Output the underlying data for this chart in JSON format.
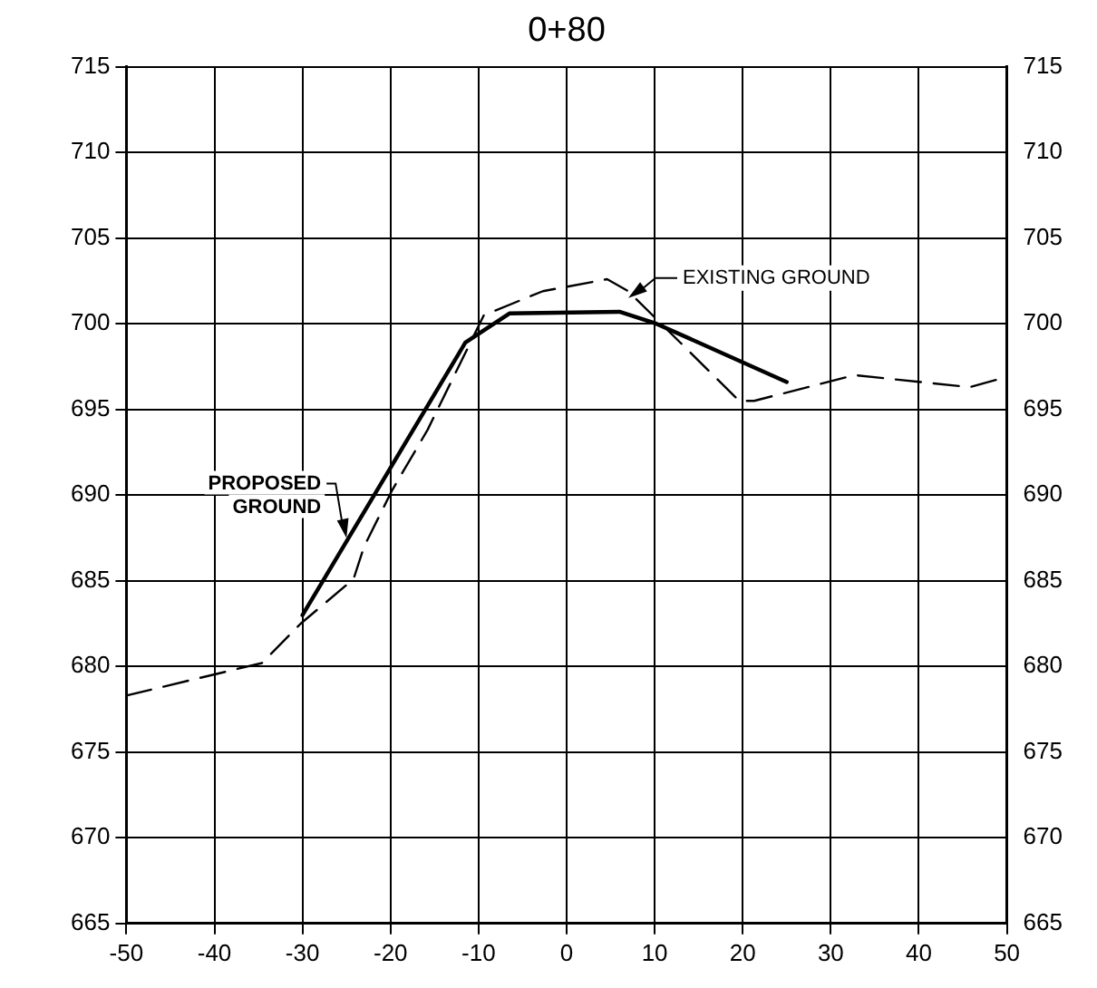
{
  "chart_data": {
    "type": "line",
    "title": "0+80",
    "series": [
      {
        "color": "#000000",
        "line_style": "solid",
        "x": [
          -30,
          -11.5,
          -6.5,
          6,
          10.2,
          25
        ],
        "values": [
          683,
          698.9,
          700.6,
          700.7,
          700,
          696.6
        ]
      },
      {
        "color": "#000000",
        "line_style": "dashed",
        "x": [
          -50,
          -34.6,
          -30.2,
          -24.2,
          -23,
          -19.8,
          -15.8,
          -9.4,
          -2.7,
          4.6,
          7,
          19.6,
          21.3,
          32.7,
          45.8,
          50
        ],
        "values": [
          678.3,
          680.2,
          682.5,
          685.1,
          687,
          690.3,
          693.8,
          700.5,
          701.9,
          702.6,
          701.9,
          695.5,
          695.5,
          697,
          696.3,
          696.9
        ]
      }
    ],
    "xlim": [
      -50,
      50
    ],
    "xticks": [
      -50,
      -40,
      -30,
      -20,
      -10,
      0,
      10,
      20,
      30,
      40,
      50
    ],
    "ylim": [
      665,
      715
    ],
    "yticks": [
      665,
      670,
      675,
      680,
      685,
      690,
      695,
      700,
      705,
      710,
      715
    ],
    "y2lim": [
      665,
      715
    ],
    "y2ticks": [
      665,
      670,
      675,
      680,
      685,
      690,
      695,
      700,
      705,
      710,
      715
    ],
    "annotations": [
      {
        "text": "PROPOSED GROUND",
        "x": -25,
        "y": 687.5
      },
      {
        "text": "EXISTING GROUND",
        "x": 7,
        "y": 701.5
      }
    ],
    "grid": true,
    "legend": false,
    "marker": "none"
  }
}
